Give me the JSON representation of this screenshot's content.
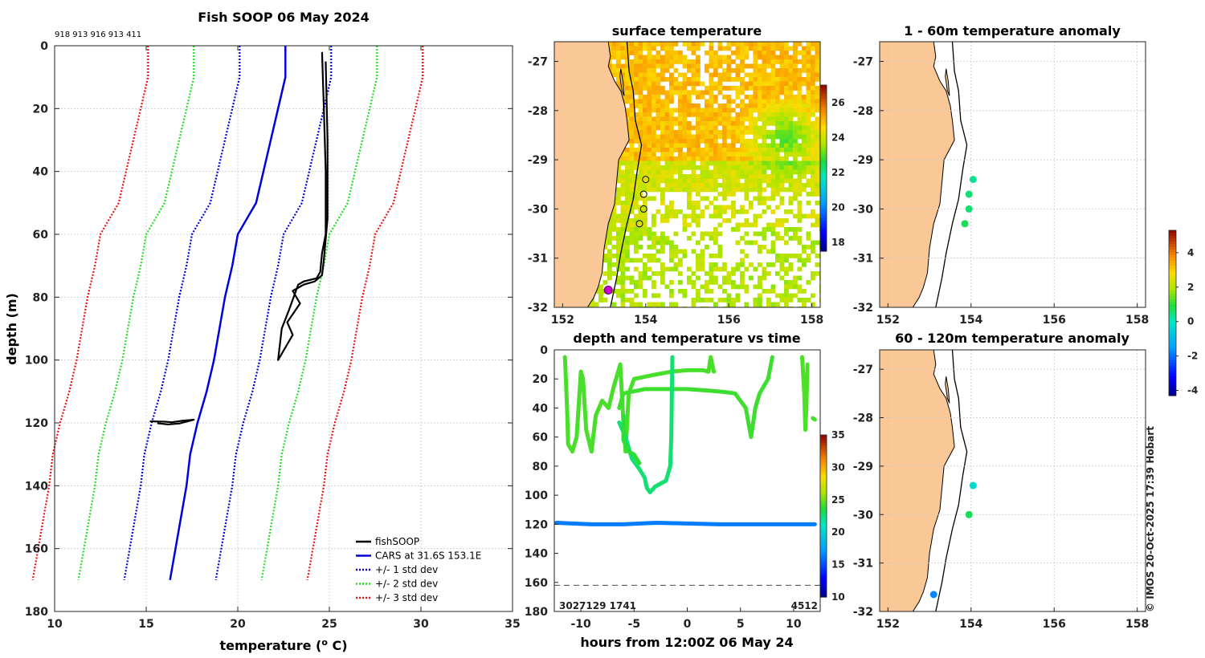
{
  "profile": {
    "title": "Fish SOOP 06 May 2024",
    "xlabel": "temperature (o C)",
    "ylabel": "depth (m)",
    "top_ids": "918 913 916 913 411",
    "legend": [
      "fishSOOP",
      "CARS at 31.6S 153.1E",
      "+/- 1 std dev",
      "+/- 2 std dev",
      "+/- 3 std dev"
    ]
  },
  "sst": {
    "title": "surface temperature"
  },
  "dt": {
    "title": "depth and temperature vs time",
    "xlabel": "hours from 12:00Z 06 May 24",
    "ids_left": "3027129 1741",
    "id_right": "4512"
  },
  "anom1": {
    "title": "1 - 60m temperature anomaly"
  },
  "anom2": {
    "title": "60 - 120m temperature anomaly"
  },
  "credit": "© IMOS 20-Oct-2025 17:39 Hobart",
  "colors": {
    "land": "#f9c896",
    "cars": "#0000dd",
    "fishsoop": "#000000",
    "std1": "#0000dd",
    "std2": "#22dd22",
    "std3": "#ee1111",
    "marker_highlight": "#cc00cc"
  },
  "chart_data": [
    {
      "id": "profile",
      "type": "line",
      "title": "Fish SOOP 06 May 2024",
      "xlabel": "temperature (o C)",
      "ylabel": "depth (m)",
      "xlim": [
        10,
        35
      ],
      "ylim": [
        180,
        0
      ],
      "xticks": [
        10,
        15,
        20,
        25,
        30,
        35
      ],
      "yticks": [
        0,
        20,
        40,
        60,
        80,
        100,
        120,
        140,
        160,
        180
      ],
      "grid": true,
      "legend_position": "bottom-right",
      "depth": [
        0,
        10,
        20,
        30,
        40,
        50,
        60,
        70,
        80,
        90,
        100,
        110,
        120,
        130,
        140,
        150,
        160,
        170
      ],
      "cars": [
        22.6,
        22.6,
        22.2,
        21.8,
        21.4,
        21.0,
        20.0,
        19.7,
        19.3,
        19.0,
        18.7,
        18.3,
        17.8,
        17.4,
        17.2,
        16.9,
        16.6,
        16.3
      ],
      "std_offsets": [
        2.5,
        5.0,
        7.5
      ],
      "series": [
        {
          "name": "fishSOOP",
          "points": [
            [
              24.6,
              2
            ],
            [
              24.7,
              20
            ],
            [
              24.8,
              40
            ],
            [
              24.8,
              60
            ],
            [
              24.6,
              66
            ],
            [
              24.5,
              72
            ],
            [
              24.3,
              74
            ],
            [
              23.6,
              75
            ],
            [
              23.3,
              76
            ],
            [
              22.8,
              84
            ],
            [
              22.4,
              90
            ],
            [
              22.3,
              95
            ],
            [
              22.2,
              100
            ],
            [
              22.6,
              96
            ],
            [
              23.0,
              92
            ],
            [
              22.7,
              88
            ],
            [
              23.4,
              82
            ],
            [
              23.0,
              78
            ],
            [
              23.6,
              76
            ],
            [
              24.2,
              75
            ],
            [
              24.6,
              73
            ],
            [
              24.7,
              68
            ],
            [
              24.9,
              55
            ],
            [
              24.9,
              30
            ],
            [
              24.8,
              5
            ]
          ]
        },
        {
          "name": "fishSOOP deep",
          "points": [
            [
              15.2,
              119.5
            ],
            [
              16.0,
              119.6
            ],
            [
              16.4,
              119.8
            ],
            [
              17.0,
              119.3
            ],
            [
              17.6,
              119.0
            ],
            [
              16.8,
              120.2
            ],
            [
              16.2,
              120.5
            ],
            [
              15.6,
              120.1
            ]
          ]
        }
      ]
    },
    {
      "id": "sst",
      "type": "heatmap",
      "title": "surface temperature",
      "xlim": [
        151.8,
        158.2
      ],
      "ylim": [
        -32,
        -26.6
      ],
      "xticks": [
        152,
        154,
        156,
        158
      ],
      "yticks": [
        -32,
        -31,
        -30,
        -29,
        -28,
        -27
      ],
      "colorbar_ticks": [
        18,
        20,
        22,
        24,
        26
      ],
      "colorbar_range": [
        17.5,
        27
      ],
      "stations": [
        [
          154.0,
          -29.4
        ],
        [
          153.95,
          -29.7
        ],
        [
          153.95,
          -30.0
        ],
        [
          153.85,
          -30.3
        ]
      ],
      "highlight": [
        153.1,
        -31.65
      ]
    },
    {
      "id": "depth_time",
      "type": "scatter",
      "title": "depth and temperature vs time",
      "xlabel": "hours from 12:00Z 06 May 24",
      "xlim": [
        -12.5,
        12.5
      ],
      "ylim": [
        180,
        0
      ],
      "xticks": [
        -10,
        -5,
        0,
        5,
        10
      ],
      "yticks": [
        0,
        20,
        40,
        60,
        80,
        100,
        120,
        140,
        160,
        180
      ],
      "bottom_depth": 162,
      "colorbar_ticks": [
        10,
        15,
        20,
        25,
        30,
        35
      ],
      "colorbar_range": [
        10,
        35
      ],
      "series": [
        {
          "name": "trace-1",
          "temp": 24.5,
          "points": [
            [
              -11.5,
              5
            ],
            [
              -11.3,
              40
            ],
            [
              -11.2,
              65
            ],
            [
              -10.8,
              70
            ],
            [
              -10.4,
              60
            ],
            [
              -10.0,
              15
            ],
            [
              -9.8,
              20
            ],
            [
              -9.5,
              55
            ],
            [
              -9.0,
              70
            ],
            [
              -8.6,
              45
            ],
            [
              -8.0,
              35
            ],
            [
              -7.4,
              40
            ],
            [
              -6.9,
              25
            ],
            [
              -6.3,
              10
            ],
            [
              -6.0,
              50
            ],
            [
              -5.8,
              70
            ],
            [
              -5.5,
              30
            ],
            [
              -5.0,
              20
            ],
            [
              -3.0,
              17
            ],
            [
              -1.5,
              15
            ],
            [
              0,
              14
            ],
            [
              1.5,
              14
            ],
            [
              2.0,
              15
            ],
            [
              2.2,
              5
            ],
            [
              2.5,
              15
            ]
          ]
        },
        {
          "name": "trace-2",
          "temp": 24.3,
          "points": [
            [
              -6.4,
              40
            ],
            [
              -6.0,
              30
            ],
            [
              -4.0,
              27
            ],
            [
              -2.0,
              27
            ],
            [
              0,
              27
            ],
            [
              2,
              28
            ],
            [
              3.5,
              29
            ],
            [
              4.5,
              30
            ],
            [
              5.5,
              40
            ],
            [
              6.0,
              60
            ],
            [
              6.4,
              40
            ],
            [
              6.8,
              30
            ],
            [
              7.6,
              20
            ],
            [
              8.0,
              5
            ]
          ]
        },
        {
          "name": "trace-3",
          "temp": 22.8,
          "points": [
            [
              -6.4,
              50
            ],
            [
              -5.8,
              60
            ],
            [
              -5.2,
              75
            ],
            [
              -4.5,
              82
            ],
            [
              -4.0,
              88
            ],
            [
              -3.8,
              95
            ],
            [
              -3.5,
              98
            ],
            [
              -3.0,
              94
            ],
            [
              -2.5,
              92
            ],
            [
              -2.0,
              90
            ],
            [
              -1.6,
              80
            ],
            [
              -1.5,
              60
            ],
            [
              -1.4,
              5
            ]
          ]
        },
        {
          "name": "trace-4",
          "temp": 24.0,
          "points": [
            [
              -6.0,
              45
            ],
            [
              -6.0,
              62
            ],
            [
              -5.5,
              70
            ],
            [
              -5.0,
              72
            ],
            [
              -4.5,
              78
            ]
          ]
        },
        {
          "name": "trace-5",
          "temp": 24.6,
          "points": [
            [
              10.8,
              5
            ],
            [
              11.0,
              30
            ],
            [
              11.1,
              55
            ],
            [
              11.2,
              40
            ],
            [
              11.3,
              10
            ]
          ]
        },
        {
          "name": "trace-6",
          "temp": 24.5,
          "points": [
            [
              11.8,
              47
            ],
            [
              12.0,
              48
            ]
          ]
        },
        {
          "name": "deep",
          "temp": 16.5,
          "points": [
            [
              -12.3,
              119
            ],
            [
              -9,
              120
            ],
            [
              -6,
              120
            ],
            [
              -3,
              119
            ],
            [
              0,
              119.5
            ],
            [
              3,
              120
            ],
            [
              6,
              120
            ],
            [
              9,
              120
            ],
            [
              12,
              120
            ]
          ]
        }
      ]
    },
    {
      "id": "anom1",
      "type": "scatter",
      "title": "1 - 60m temperature anomaly",
      "xlim": [
        151.8,
        158.2
      ],
      "ylim": [
        -32,
        -26.6
      ],
      "xticks": [
        152,
        154,
        156,
        158
      ],
      "yticks": [
        -32,
        -31,
        -30,
        -29,
        -28,
        -27
      ],
      "points": [
        [
          154.05,
          -29.4,
          0.4
        ],
        [
          153.95,
          -29.7,
          0.6
        ],
        [
          153.95,
          -30.0,
          0.6
        ],
        [
          153.85,
          -30.3,
          0.8
        ]
      ]
    },
    {
      "id": "anom2",
      "type": "scatter",
      "title": "60 - 120m temperature anomaly",
      "xlim": [
        151.8,
        158.2
      ],
      "ylim": [
        -32,
        -26.6
      ],
      "xticks": [
        152,
        154,
        156,
        158
      ],
      "yticks": [
        -32,
        -31,
        -30,
        -29,
        -28,
        -27
      ],
      "points": [
        [
          154.05,
          -29.4,
          -0.2
        ],
        [
          153.95,
          -30.0,
          0.8
        ],
        [
          153.1,
          -31.65,
          -1.7
        ]
      ]
    },
    {
      "id": "anomaly_colorbar",
      "type": "heatmap",
      "colorbar_ticks": [
        -4,
        -2,
        0,
        2,
        4
      ],
      "colorbar_range": [
        -4.3,
        5.3
      ]
    }
  ]
}
